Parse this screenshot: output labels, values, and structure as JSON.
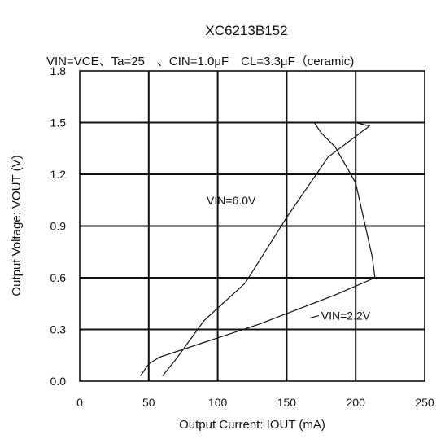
{
  "chart_data": {
    "type": "line",
    "title": "XC6213B152",
    "subtitle": "VIN=VCE、Ta=25　、CIN=1.0μF　CL=3.3μF（ceramic)",
    "xlabel": "Output Current: IOUT (mA)",
    "ylabel": "Output Voltage: VOUT (V)",
    "xlim": [
      0,
      250
    ],
    "ylim": [
      0.0,
      1.8
    ],
    "x_ticks": [
      "0",
      "50",
      "100",
      "150",
      "200",
      "250"
    ],
    "y_ticks": [
      "0.0",
      "0.3",
      "0.6",
      "0.9",
      "1.2",
      "1.5",
      "1.8"
    ],
    "grid": true,
    "series": [
      {
        "name": "VIN=6.0V",
        "points": [
          [
            60,
            0.03
          ],
          [
            70,
            0.13
          ],
          [
            90,
            0.35
          ],
          [
            120,
            0.57
          ],
          [
            150,
            0.95
          ],
          [
            180,
            1.3
          ],
          [
            200,
            1.42
          ],
          [
            210,
            1.48
          ],
          [
            200,
            1.5
          ],
          [
            170,
            1.5
          ]
        ]
      },
      {
        "name": "VIN=2.2V",
        "points": [
          [
            44,
            0.03
          ],
          [
            50,
            0.1
          ],
          [
            58,
            0.14
          ],
          [
            130,
            0.33
          ],
          [
            185,
            0.5
          ],
          [
            214,
            0.6
          ],
          [
            212,
            0.72
          ],
          [
            200,
            1.15
          ],
          [
            185,
            1.36
          ],
          [
            175,
            1.44
          ],
          [
            170,
            1.5
          ],
          [
            130,
            1.5
          ]
        ]
      }
    ],
    "annotations": [
      {
        "text": "VIN=6.0V",
        "x": 92,
        "y": 1.05
      },
      {
        "text": "VIN=2.2V",
        "x": 175,
        "y": 0.38
      }
    ]
  }
}
